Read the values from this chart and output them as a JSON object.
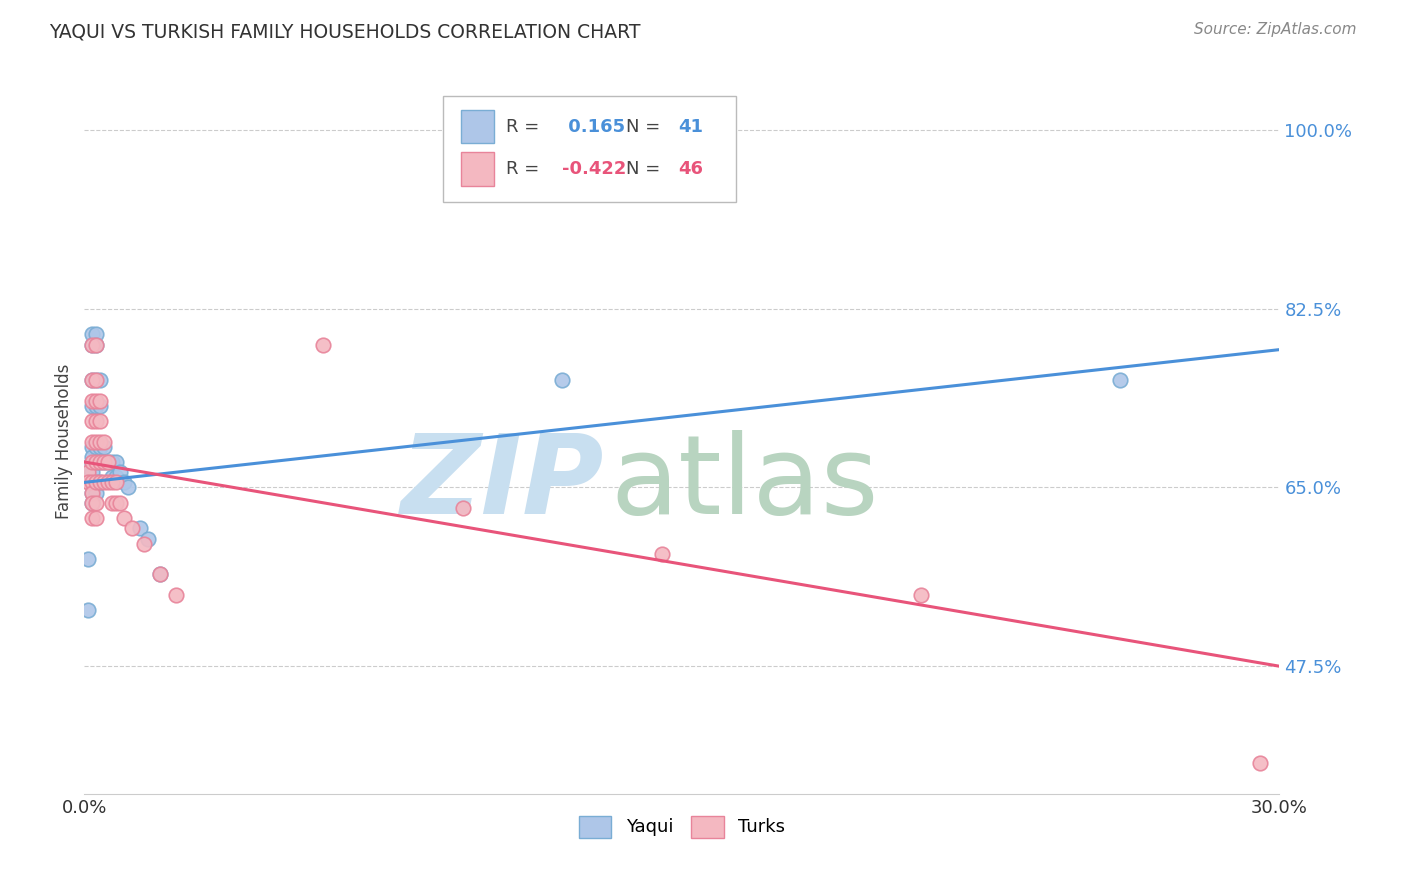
{
  "title": "YAQUI VS TURKISH FAMILY HOUSEHOLDS CORRELATION CHART",
  "source": "Source: ZipAtlas.com",
  "ylabel": "Family Households",
  "ytick_labels": [
    "47.5%",
    "65.0%",
    "82.5%",
    "100.0%"
  ],
  "ytick_values": [
    0.475,
    0.65,
    0.825,
    1.0
  ],
  "xlim": [
    0.0,
    0.3
  ],
  "ylim": [
    0.35,
    1.04
  ],
  "legend_r1": "0.165",
  "legend_n1": "41",
  "legend_r2": "-0.422",
  "legend_n2": "46",
  "yaqui_color": "#aec6e8",
  "turks_color": "#f4b8c1",
  "yaqui_edge": "#7aadd4",
  "turks_edge": "#e8849a",
  "line_yaqui_color": "#4a90d9",
  "line_turks_color": "#e8547a",
  "yaqui_scatter": [
    [
      0.001,
      0.67
    ],
    [
      0.001,
      0.58
    ],
    [
      0.001,
      0.53
    ],
    [
      0.002,
      0.8
    ],
    [
      0.002,
      0.79
    ],
    [
      0.002,
      0.755
    ],
    [
      0.002,
      0.73
    ],
    [
      0.002,
      0.69
    ],
    [
      0.002,
      0.68
    ],
    [
      0.002,
      0.665
    ],
    [
      0.002,
      0.655
    ],
    [
      0.002,
      0.645
    ],
    [
      0.002,
      0.635
    ],
    [
      0.003,
      0.8
    ],
    [
      0.003,
      0.79
    ],
    [
      0.003,
      0.755
    ],
    [
      0.003,
      0.73
    ],
    [
      0.003,
      0.69
    ],
    [
      0.003,
      0.675
    ],
    [
      0.003,
      0.655
    ],
    [
      0.003,
      0.645
    ],
    [
      0.004,
      0.755
    ],
    [
      0.004,
      0.73
    ],
    [
      0.004,
      0.69
    ],
    [
      0.004,
      0.675
    ],
    [
      0.004,
      0.655
    ],
    [
      0.005,
      0.69
    ],
    [
      0.005,
      0.675
    ],
    [
      0.006,
      0.675
    ],
    [
      0.007,
      0.675
    ],
    [
      0.007,
      0.66
    ],
    [
      0.008,
      0.675
    ],
    [
      0.008,
      0.66
    ],
    [
      0.009,
      0.665
    ],
    [
      0.01,
      0.655
    ],
    [
      0.011,
      0.65
    ],
    [
      0.014,
      0.61
    ],
    [
      0.016,
      0.6
    ],
    [
      0.019,
      0.565
    ],
    [
      0.12,
      0.755
    ],
    [
      0.26,
      0.755
    ]
  ],
  "turks_scatter": [
    [
      0.001,
      0.665
    ],
    [
      0.001,
      0.655
    ],
    [
      0.002,
      0.79
    ],
    [
      0.002,
      0.755
    ],
    [
      0.002,
      0.735
    ],
    [
      0.002,
      0.715
    ],
    [
      0.002,
      0.695
    ],
    [
      0.002,
      0.675
    ],
    [
      0.002,
      0.655
    ],
    [
      0.002,
      0.645
    ],
    [
      0.002,
      0.635
    ],
    [
      0.002,
      0.62
    ],
    [
      0.003,
      0.79
    ],
    [
      0.003,
      0.755
    ],
    [
      0.003,
      0.735
    ],
    [
      0.003,
      0.715
    ],
    [
      0.003,
      0.695
    ],
    [
      0.003,
      0.675
    ],
    [
      0.003,
      0.655
    ],
    [
      0.003,
      0.635
    ],
    [
      0.003,
      0.62
    ],
    [
      0.004,
      0.735
    ],
    [
      0.004,
      0.715
    ],
    [
      0.004,
      0.695
    ],
    [
      0.004,
      0.675
    ],
    [
      0.004,
      0.655
    ],
    [
      0.005,
      0.695
    ],
    [
      0.005,
      0.675
    ],
    [
      0.005,
      0.655
    ],
    [
      0.006,
      0.675
    ],
    [
      0.006,
      0.655
    ],
    [
      0.007,
      0.655
    ],
    [
      0.007,
      0.635
    ],
    [
      0.008,
      0.655
    ],
    [
      0.008,
      0.635
    ],
    [
      0.009,
      0.635
    ],
    [
      0.01,
      0.62
    ],
    [
      0.012,
      0.61
    ],
    [
      0.015,
      0.595
    ],
    [
      0.019,
      0.565
    ],
    [
      0.023,
      0.545
    ],
    [
      0.06,
      0.79
    ],
    [
      0.095,
      0.63
    ],
    [
      0.145,
      0.585
    ],
    [
      0.21,
      0.545
    ],
    [
      0.295,
      0.38
    ]
  ],
  "yaqui_line_x": [
    0.0,
    0.3
  ],
  "yaqui_line_y": [
    0.655,
    0.785
  ],
  "turks_line_x": [
    0.0,
    0.3
  ],
  "turks_line_y": [
    0.675,
    0.475
  ],
  "grid_color": "#cccccc",
  "background_color": "#ffffff",
  "watermark_zip_color": "#c8dff0",
  "watermark_atlas_color": "#b8d4c0"
}
